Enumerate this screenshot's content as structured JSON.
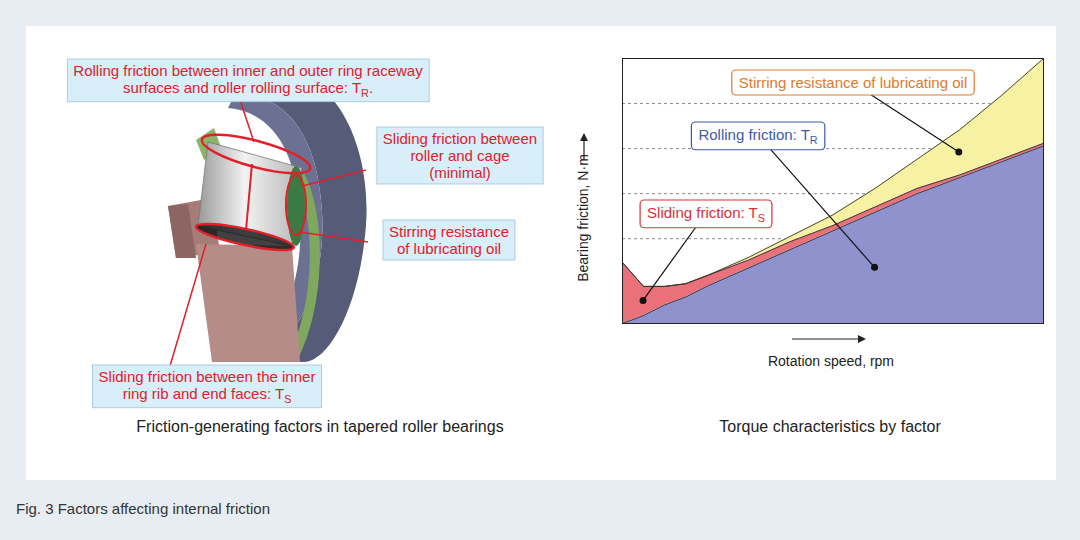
{
  "figure": {
    "caption": "Fig. 3  Factors affecting internal friction"
  },
  "diagram": {
    "caption": "Friction-generating factors in tapered roller bearings",
    "labels": [
      {
        "lines": [
          [
            "Rolling friction between inner and outer ring raceway"
          ],
          [
            "surfaces and roller rolling surface: T",
            {
              "sub": "R"
            },
            "."
          ]
        ]
      },
      {
        "lines": [
          [
            "Sliding friction between"
          ],
          [
            "roller and cage"
          ],
          [
            "(minimal)"
          ]
        ]
      },
      {
        "lines": [
          [
            "Stirring resistance"
          ],
          [
            "of lubricating oil"
          ]
        ]
      },
      {
        "lines": [
          [
            "Sliding friction between the inner"
          ],
          [
            "ring rib and end faces: T",
            {
              "sub": "S"
            }
          ]
        ]
      }
    ]
  },
  "chart_data": {
    "type": "area",
    "stacked": true,
    "caption": "Torque characteristics by factor",
    "x_label": "Rotation speed, rpm",
    "y_label": "Bearing friction, N·m",
    "x": [
      0,
      5,
      10,
      15,
      20,
      30,
      40,
      50,
      60,
      70,
      80,
      90,
      100
    ],
    "xlim": [
      0,
      100
    ],
    "ylim": [
      0,
      100
    ],
    "yticks": [
      32,
      49,
      66,
      83
    ],
    "grid": true,
    "tick_labels": false,
    "series": [
      {
        "name": [
          "Rolling friction: T",
          {
            "sub": "R"
          }
        ],
        "color": "#8f92cc",
        "values": [
          0,
          3,
          7,
          10,
          14,
          21,
          28,
          35,
          42,
          49,
          55,
          61,
          67
        ]
      },
      {
        "name": [
          "Sliding friction: T",
          {
            "sub": "S"
          }
        ],
        "color": "#ea7079",
        "values": [
          23,
          11,
          7,
          5,
          4,
          3,
          3,
          2,
          2,
          2,
          1,
          1,
          1
        ]
      },
      {
        "name": [
          "Stirring resistance of lubricating oil"
        ],
        "color": "#f7f1a3",
        "values": [
          0,
          0,
          0,
          0,
          0,
          1,
          2,
          4,
          7,
          11,
          17,
          24,
          32
        ]
      }
    ]
  }
}
